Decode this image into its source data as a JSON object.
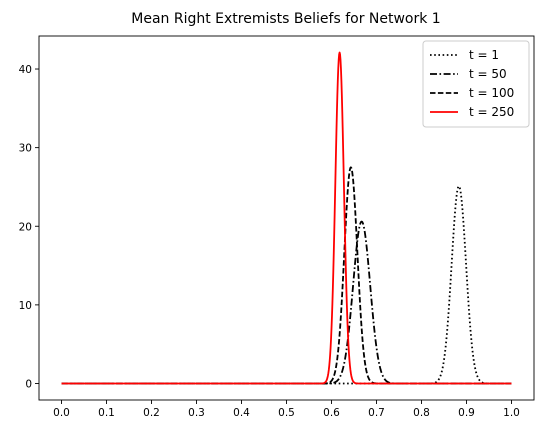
{
  "chart_data": {
    "type": "line",
    "title": "Mean Right Extremists Beliefs for Network 1",
    "xlabel": "",
    "ylabel": "",
    "xlim": [
      -0.05,
      1.05
    ],
    "ylim": [
      -2.1,
      44.2
    ],
    "xticks": [
      "0.0",
      "0.1",
      "0.2",
      "0.3",
      "0.4",
      "0.5",
      "0.6",
      "0.7",
      "0.8",
      "0.9",
      "1.0"
    ],
    "yticks": [
      "0",
      "10",
      "20",
      "30",
      "40"
    ],
    "grid": false,
    "legend_position": "upper-right",
    "series": [
      {
        "name": "t = 1",
        "style": "dotted",
        "color": "#000000",
        "peak_x": 0.883,
        "peak_y": 25.1,
        "width": 0.016
      },
      {
        "name": "t = 50",
        "style": "dashdot",
        "color": "#000000",
        "peak_x": 0.667,
        "peak_y": 20.6,
        "width": 0.019
      },
      {
        "name": "t = 100",
        "style": "dashed",
        "color": "#000000",
        "peak_x": 0.643,
        "peak_y": 27.5,
        "width": 0.0145
      },
      {
        "name": "t = 250",
        "style": "solid",
        "color": "#ff0000",
        "peak_x": 0.618,
        "peak_y": 42.1,
        "width": 0.0095
      }
    ]
  }
}
